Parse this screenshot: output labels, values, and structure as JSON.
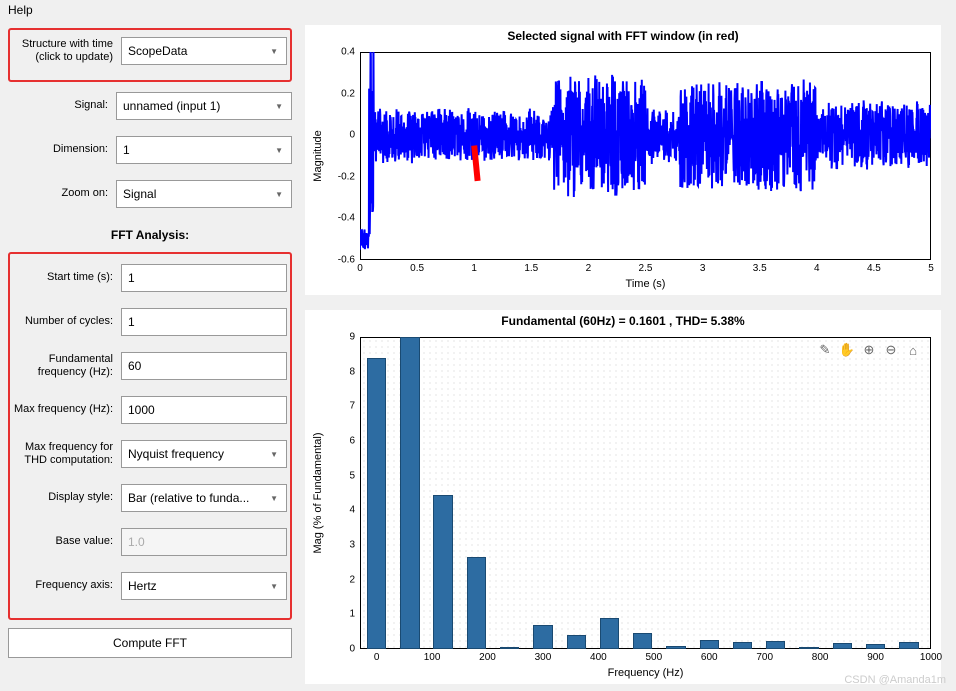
{
  "menu": {
    "help": "Help"
  },
  "left": {
    "structure_label": "Structure with time (click to update)",
    "structure_value": "ScopeData",
    "signal_label": "Signal:",
    "signal_value": "unnamed (input 1)",
    "dimension_label": "Dimension:",
    "dimension_value": "1",
    "zoom_label": "Zoom on:",
    "zoom_value": "Signal",
    "fft_title": "FFT Analysis:",
    "start_label": "Start time (s):",
    "start_value": "1",
    "cycles_label": "Number of cycles:",
    "cycles_value": "1",
    "fund_label": "Fundamental frequency (Hz):",
    "fund_value": "60",
    "maxf_label": "Max frequency (Hz):",
    "maxf_value": "1000",
    "thd_label": "Max frequency for THD computation:",
    "thd_value": "Nyquist frequency",
    "display_label": "Display style:",
    "display_value": "Bar (relative to funda...",
    "base_label": "Base value:",
    "base_value": "1.0",
    "faxis_label": "Frequency axis:",
    "faxis_value": "Hertz",
    "compute": "Compute FFT"
  },
  "chart1": {
    "title": "Selected signal with FFT window (in red)",
    "ylabel": "Magnitude",
    "xlabel": "Time (s)",
    "yticks": [
      -0.6,
      -0.4,
      -0.2,
      0,
      0.2,
      0.4
    ],
    "xticks": [
      0,
      0.5,
      1,
      1.5,
      2,
      2.5,
      3,
      3.5,
      4,
      4.5,
      5
    ],
    "ymin": -0.6,
    "ymax": 0.4,
    "xmin": 0,
    "xmax": 5,
    "line_color": "#0000ff",
    "fft_marker_color": "#ff0000",
    "fft_marker_x": 1
  },
  "chart2": {
    "title": "Fundamental (60Hz) = 0.1601 , THD= 5.38%",
    "ylabel": "Mag (% of Fundamental)",
    "xlabel": "Frequency (Hz)",
    "yticks": [
      0,
      1,
      2,
      3,
      4,
      5,
      6,
      7,
      8,
      9
    ],
    "xticks": [
      0,
      100,
      200,
      300,
      400,
      500,
      600,
      700,
      800,
      900,
      1000
    ],
    "ymin": 0,
    "ymax": 9,
    "xmin": -30,
    "xmax": 1000,
    "bar_color": "#2d6ca2",
    "bars": [
      {
        "x": 0,
        "y": 8.4
      },
      {
        "x": 60,
        "y": 9.2
      },
      {
        "x": 120,
        "y": 4.45
      },
      {
        "x": 180,
        "y": 2.65
      },
      {
        "x": 240,
        "y": 0.05
      },
      {
        "x": 300,
        "y": 0.7
      },
      {
        "x": 360,
        "y": 0.4
      },
      {
        "x": 420,
        "y": 0.9
      },
      {
        "x": 480,
        "y": 0.45
      },
      {
        "x": 540,
        "y": 0.1
      },
      {
        "x": 600,
        "y": 0.25
      },
      {
        "x": 660,
        "y": 0.2
      },
      {
        "x": 720,
        "y": 0.22
      },
      {
        "x": 780,
        "y": 0.05
      },
      {
        "x": 840,
        "y": 0.18
      },
      {
        "x": 900,
        "y": 0.15
      },
      {
        "x": 960,
        "y": 0.2
      }
    ],
    "bar_width_hz": 35
  },
  "watermark": "CSDN @Amanda1m"
}
